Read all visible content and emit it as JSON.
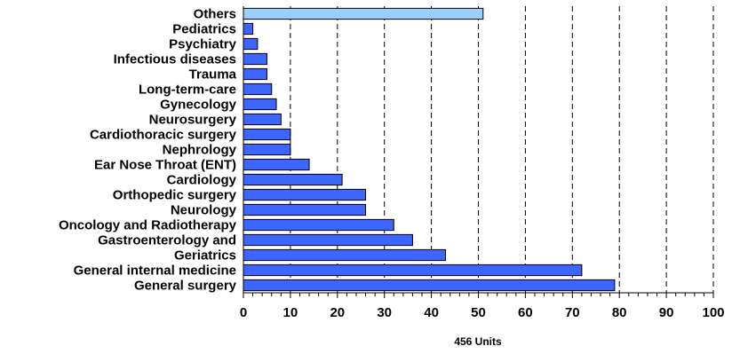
{
  "chart_data": {
    "type": "bar",
    "orientation": "horizontal",
    "xlabel": "456 Units",
    "xlim": [
      0,
      100
    ],
    "xticks": [
      0,
      10,
      20,
      30,
      40,
      50,
      60,
      70,
      80,
      90,
      100
    ],
    "grid": "vertical dashed",
    "legend": "none",
    "categories": [
      "Others",
      "Pediatrics",
      "Psychiatry",
      "Infectious diseases",
      "Trauma",
      "Long-term-care",
      "Gynecology",
      "Neurosurgery",
      "Cardiothoracic surgery",
      "Nephrology",
      "Ear Nose Throat (ENT)",
      "Cardiology",
      "Orthopedic surgery",
      "Neurology",
      "Oncology and Radiotherapy",
      "Gastroenterology and",
      "Geriatrics",
      "General internal medicine",
      "General surgery"
    ],
    "values": [
      51,
      2,
      3,
      5,
      5,
      6,
      7,
      8,
      10,
      10,
      14,
      21,
      26,
      26,
      32,
      36,
      43,
      72,
      79
    ],
    "colors": {
      "bar": "#3c66ff",
      "highlight_bar": "#9ccfff",
      "bar_stroke": "#000000",
      "grid": "#000000"
    },
    "highlight_index": 0
  }
}
